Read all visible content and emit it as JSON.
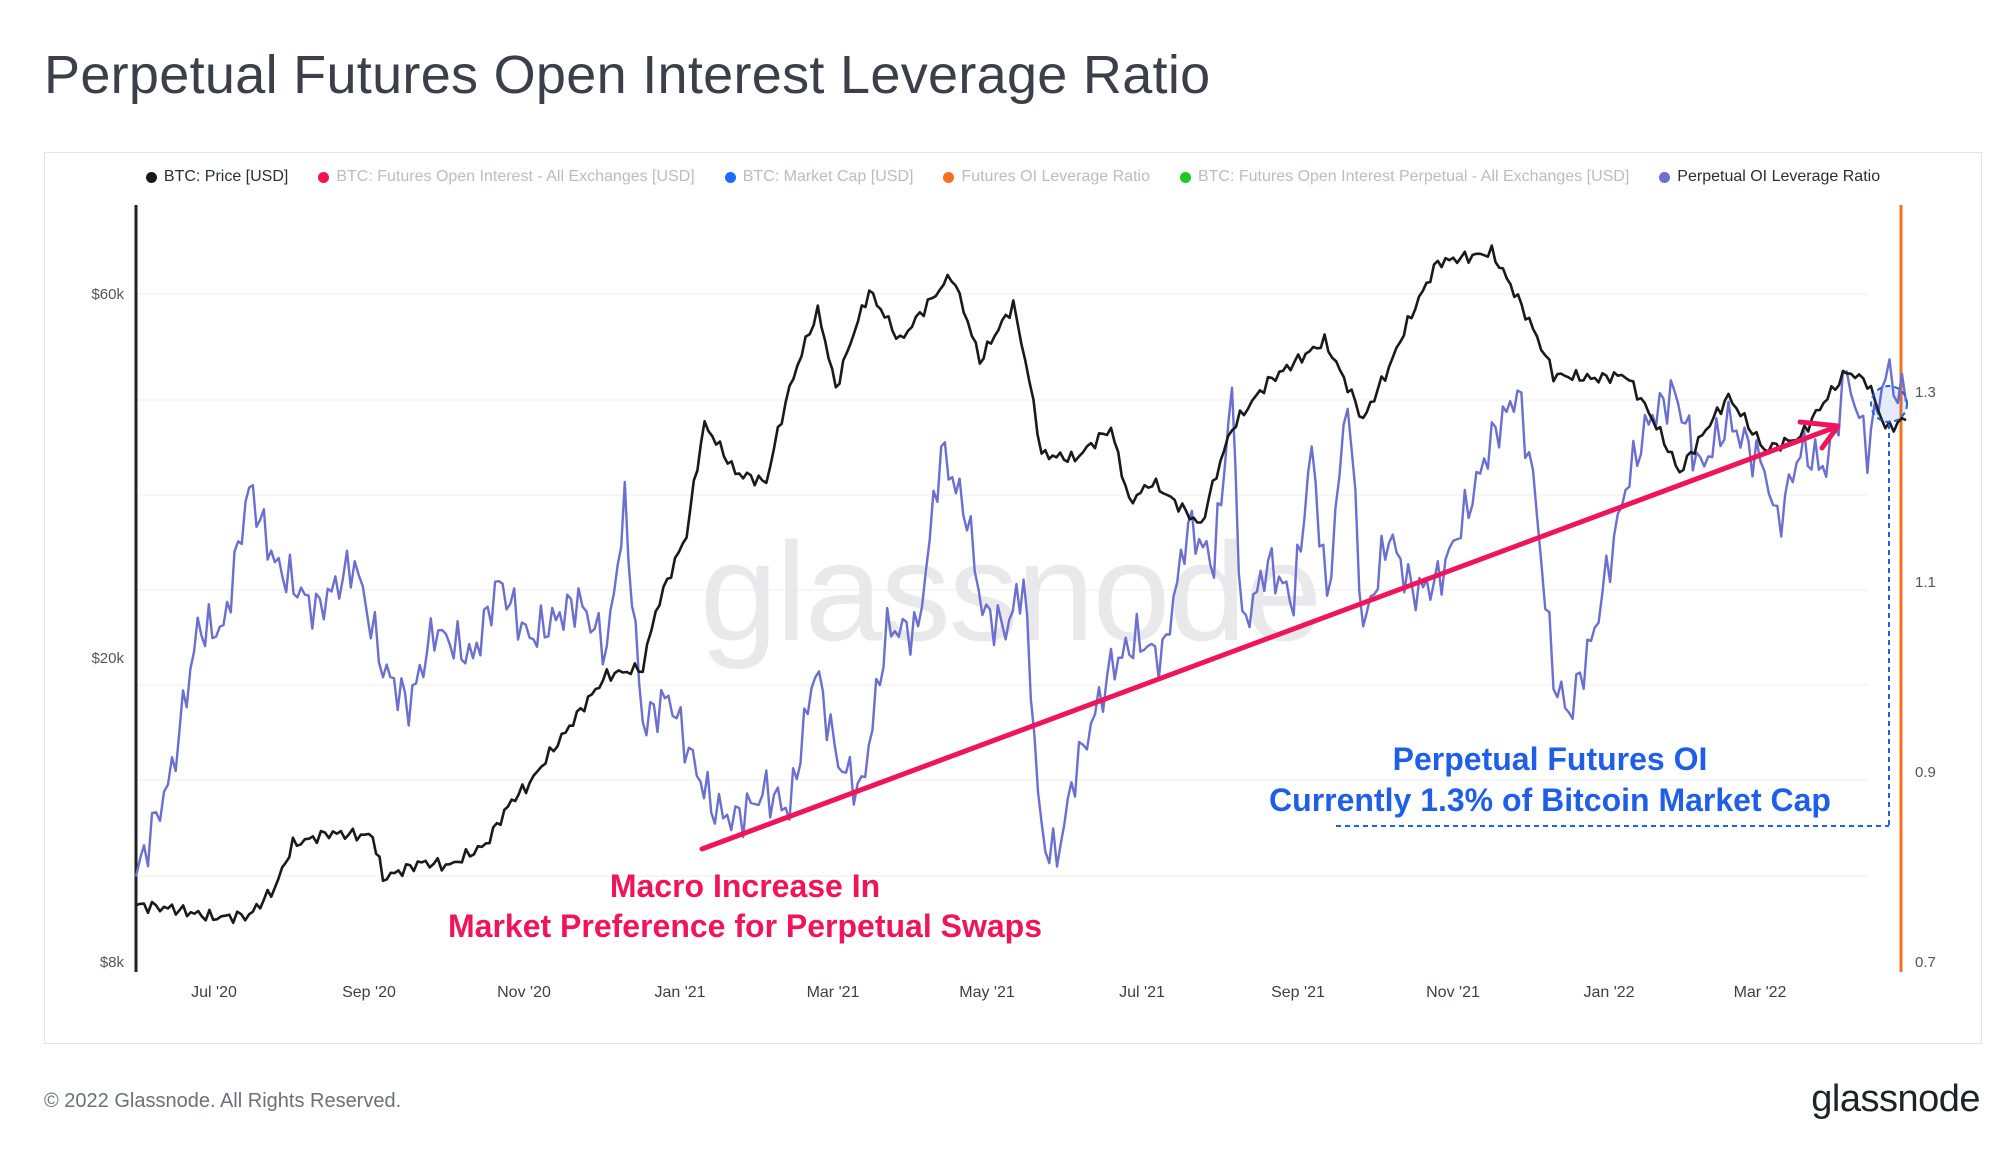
{
  "title": "Perpetual Futures Open Interest Leverage Ratio",
  "copyright": "© 2022 Glassnode. All Rights Reserved.",
  "brand": "glassnode",
  "watermark": "glassnode",
  "chart_data": {
    "type": "line",
    "title": "Perpetual Futures Open Interest Leverage Ratio",
    "x_ticks": [
      "Jul '20",
      "Sep '20",
      "Nov '20",
      "Jan '21",
      "Mar '21",
      "May '21",
      "Jul '21",
      "Sep '21",
      "Nov '21",
      "Jan '22",
      "Mar '22"
    ],
    "y_left": {
      "scale": "log",
      "ticks": [
        "$8k",
        "$20k",
        "$60k"
      ],
      "tick_values": [
        8000,
        20000,
        60000
      ]
    },
    "y_right": {
      "ticks": [
        "0.7",
        "0.9",
        "1.1",
        "1.3"
      ],
      "tick_values": [
        0.7,
        0.9,
        1.1,
        1.3
      ]
    },
    "x_range": [
      "2020-06-01",
      "2022-04-20"
    ],
    "grid": true,
    "legend_placement": "top-center",
    "legend": [
      {
        "label": "BTC: Price [USD]",
        "color": "#1a1a1a",
        "active": true
      },
      {
        "label": "BTC: Futures Open Interest - All Exchanges [USD]",
        "color": "#f0134d",
        "active": false
      },
      {
        "label": "BTC: Market Cap [USD]",
        "color": "#1f6bff",
        "active": false
      },
      {
        "label": "Futures OI Leverage Ratio",
        "color": "#f37021",
        "active": false
      },
      {
        "label": "BTC: Futures Open Interest Perpetual - All Exchanges [USD]",
        "color": "#1ec81e",
        "active": false
      },
      {
        "label": "Perpetual OI Leverage Ratio",
        "color": "#6a6fd0",
        "active": true
      }
    ],
    "series": [
      {
        "name": "BTC: Price [USD]",
        "color": "#1a1a1a",
        "axis": "left",
        "points": [
          [
            "2020-06-01",
            9500
          ],
          [
            "2020-06-15",
            9400
          ],
          [
            "2020-07-01",
            9150
          ],
          [
            "2020-07-15",
            9200
          ],
          [
            "2020-07-25",
            10000
          ],
          [
            "2020-08-01",
            11400
          ],
          [
            "2020-08-15",
            11800
          ],
          [
            "2020-09-01",
            11700
          ],
          [
            "2020-09-05",
            10300
          ],
          [
            "2020-09-20",
            10800
          ],
          [
            "2020-10-01",
            10700
          ],
          [
            "2020-10-15",
            11400
          ],
          [
            "2020-10-25",
            13000
          ],
          [
            "2020-11-01",
            13700
          ],
          [
            "2020-11-15",
            16000
          ],
          [
            "2020-12-01",
            19000
          ],
          [
            "2020-12-15",
            19400
          ],
          [
            "2020-12-20",
            23000
          ],
          [
            "2021-01-01",
            29000
          ],
          [
            "2021-01-08",
            40500
          ],
          [
            "2021-01-20",
            35000
          ],
          [
            "2021-02-01",
            34000
          ],
          [
            "2021-02-10",
            45000
          ],
          [
            "2021-02-21",
            57000
          ],
          [
            "2021-02-28",
            45000
          ],
          [
            "2021-03-13",
            60500
          ],
          [
            "2021-03-25",
            52000
          ],
          [
            "2021-04-14",
            63500
          ],
          [
            "2021-04-25",
            49000
          ],
          [
            "2021-05-08",
            58000
          ],
          [
            "2021-05-19",
            37000
          ],
          [
            "2021-06-01",
            36500
          ],
          [
            "2021-06-15",
            40000
          ],
          [
            "2021-06-22",
            32000
          ],
          [
            "2021-07-01",
            34000
          ],
          [
            "2021-07-20",
            29800
          ],
          [
            "2021-08-01",
            40000
          ],
          [
            "2021-08-15",
            46000
          ],
          [
            "2021-09-06",
            52000
          ],
          [
            "2021-09-21",
            41000
          ],
          [
            "2021-10-01",
            48000
          ],
          [
            "2021-10-20",
            66000
          ],
          [
            "2021-11-10",
            68000
          ],
          [
            "2021-11-26",
            54000
          ],
          [
            "2021-12-04",
            47000
          ],
          [
            "2021-12-20",
            46500
          ],
          [
            "2022-01-01",
            47000
          ],
          [
            "2022-01-10",
            42000
          ],
          [
            "2022-01-22",
            35000
          ],
          [
            "2022-02-10",
            44000
          ],
          [
            "2022-02-24",
            37500
          ],
          [
            "2022-03-10",
            39000
          ],
          [
            "2022-03-28",
            47500
          ],
          [
            "2022-04-05",
            46000
          ],
          [
            "2022-04-12",
            40000
          ],
          [
            "2022-04-20",
            41000
          ]
        ]
      },
      {
        "name": "Perpetual OI Leverage Ratio",
        "color": "#6a6fd0",
        "axis": "right",
        "points": [
          [
            "2020-06-01",
            0.79
          ],
          [
            "2020-06-15",
            0.9
          ],
          [
            "2020-06-25",
            1.05
          ],
          [
            "2020-07-05",
            1.05
          ],
          [
            "2020-07-15",
            1.2
          ],
          [
            "2020-07-25",
            1.12
          ],
          [
            "2020-08-10",
            1.07
          ],
          [
            "2020-08-25",
            1.12
          ],
          [
            "2020-09-05",
            1.01
          ],
          [
            "2020-09-15",
            0.97
          ],
          [
            "2020-09-25",
            1.05
          ],
          [
            "2020-10-10",
            1.02
          ],
          [
            "2020-10-20",
            1.1
          ],
          [
            "2020-11-01",
            1.04
          ],
          [
            "2020-11-20",
            1.08
          ],
          [
            "2020-12-01",
            1.03
          ],
          [
            "2020-12-08",
            1.18
          ],
          [
            "2020-12-15",
            0.95
          ],
          [
            "2020-12-25",
            0.98
          ],
          [
            "2021-01-05",
            0.9
          ],
          [
            "2021-01-12",
            0.86
          ],
          [
            "2021-01-20",
            0.85
          ],
          [
            "2021-02-01",
            0.88
          ],
          [
            "2021-02-10",
            0.86
          ],
          [
            "2021-02-20",
            1.01
          ],
          [
            "2021-03-01",
            0.91
          ],
          [
            "2021-03-10",
            0.88
          ],
          [
            "2021-03-20",
            1.05
          ],
          [
            "2021-04-01",
            1.05
          ],
          [
            "2021-04-10",
            1.24
          ],
          [
            "2021-04-20",
            1.17
          ],
          [
            "2021-04-26",
            1.07
          ],
          [
            "2021-05-05",
            1.05
          ],
          [
            "2021-05-12",
            1.1
          ],
          [
            "2021-05-19",
            0.83
          ],
          [
            "2021-05-25",
            0.81
          ],
          [
            "2021-06-01",
            0.9
          ],
          [
            "2021-06-15",
            1.01
          ],
          [
            "2021-06-25",
            1.04
          ],
          [
            "2021-07-05",
            1.02
          ],
          [
            "2021-07-15",
            1.16
          ],
          [
            "2021-07-25",
            1.12
          ],
          [
            "2021-08-01",
            1.3
          ],
          [
            "2021-08-05",
            1.05
          ],
          [
            "2021-08-15",
            1.12
          ],
          [
            "2021-08-25",
            1.08
          ],
          [
            "2021-09-01",
            1.24
          ],
          [
            "2021-09-07",
            1.08
          ],
          [
            "2021-09-15",
            1.3
          ],
          [
            "2021-09-21",
            1.05
          ],
          [
            "2021-10-01",
            1.15
          ],
          [
            "2021-10-10",
            1.09
          ],
          [
            "2021-10-20",
            1.1
          ],
          [
            "2021-11-01",
            1.18
          ],
          [
            "2021-11-10",
            1.25
          ],
          [
            "2021-11-20",
            1.3
          ],
          [
            "2021-11-26",
            1.21
          ],
          [
            "2021-12-04",
            1.0
          ],
          [
            "2021-12-10",
            0.96
          ],
          [
            "2021-12-20",
            1.05
          ],
          [
            "2022-01-01",
            1.2
          ],
          [
            "2022-01-10",
            1.27
          ],
          [
            "2022-01-20",
            1.3
          ],
          [
            "2022-01-30",
            1.22
          ],
          [
            "2022-02-10",
            1.27
          ],
          [
            "2022-02-24",
            1.22
          ],
          [
            "2022-03-01",
            1.16
          ],
          [
            "2022-03-10",
            1.24
          ],
          [
            "2022-03-20",
            1.22
          ],
          [
            "2022-03-28",
            1.32
          ],
          [
            "2022-04-05",
            1.24
          ],
          [
            "2022-04-12",
            1.32
          ],
          [
            "2022-04-20",
            1.29
          ]
        ]
      }
    ],
    "annotations": [
      {
        "lines": [
          "Macro Increase In",
          "Market Preference for Perpetual Swaps"
        ],
        "color": "#f0145a"
      },
      {
        "lines": [
          "Perpetual Futures OI",
          "Currently 1.3% of Bitcoin Market Cap"
        ],
        "color": "#1f5fe8"
      }
    ]
  }
}
